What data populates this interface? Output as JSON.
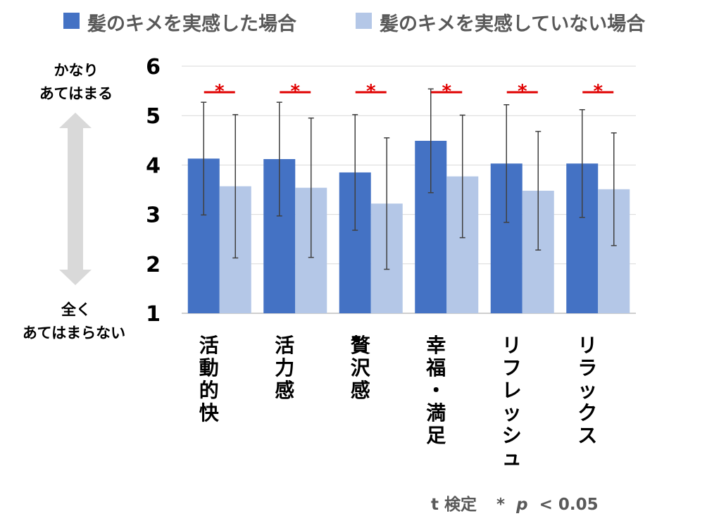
{
  "chart_data": {
    "type": "bar",
    "categories": [
      "活動的快",
      "活力感",
      "贅沢感",
      "幸福・満足",
      "リフレッシュ",
      "リラックス"
    ],
    "series": [
      {
        "name": "髪のキメを実感した場合",
        "color": "#4472c4",
        "values": [
          4.13,
          4.12,
          3.85,
          4.49,
          4.03,
          4.03
        ],
        "error": [
          1.14,
          1.15,
          1.17,
          1.05,
          1.19,
          1.09
        ]
      },
      {
        "name": "髪のキメを実感していない場合",
        "color": "#b4c7e7",
        "values": [
          3.57,
          3.54,
          3.22,
          3.77,
          3.48,
          3.51
        ],
        "error": [
          1.45,
          1.41,
          1.33,
          1.24,
          1.2,
          1.14
        ]
      }
    ],
    "yticks": [
      "1",
      "2",
      "3",
      "4",
      "5",
      "6"
    ],
    "ylim": [
      1,
      6
    ],
    "grid": true,
    "legend_position": "top",
    "significance_marker": "*",
    "significant": [
      true,
      true,
      true,
      true,
      true,
      true
    ],
    "scale_top_label": [
      "かなり",
      "あてはまる"
    ],
    "scale_bottom_label": [
      "全く",
      "あてはまらない"
    ],
    "footnote": {
      "test": "t 検定",
      "star": "*",
      "p": "p",
      "threshold": "< 0.05"
    }
  }
}
